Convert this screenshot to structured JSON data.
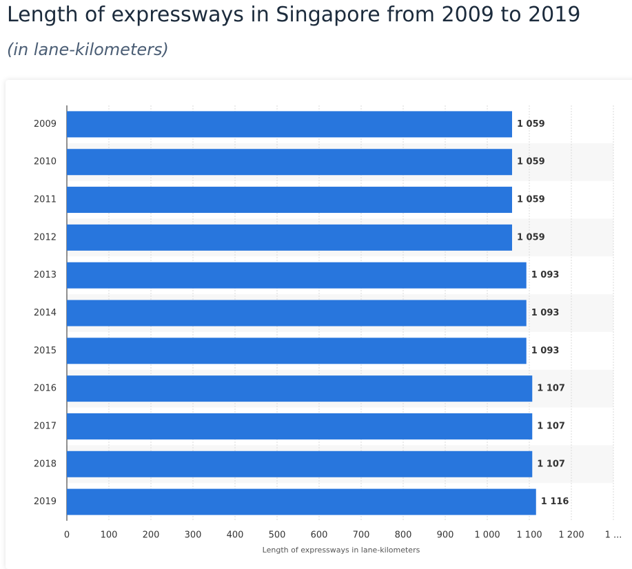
{
  "chart_data": {
    "type": "bar",
    "orientation": "horizontal",
    "title": "Length of expressways in Singapore from 2009 to 2019",
    "subtitle": "(in lane-kilometers)",
    "x_label": "Length of expressways in lane-kilometers",
    "categories": [
      "2009",
      "2010",
      "2011",
      "2012",
      "2013",
      "2014",
      "2015",
      "2016",
      "2017",
      "2018",
      "2019"
    ],
    "values": [
      1059,
      1059,
      1059,
      1059,
      1093,
      1093,
      1093,
      1107,
      1107,
      1107,
      1116
    ],
    "value_labels": [
      "1 059",
      "1 059",
      "1 059",
      "1 059",
      "1 093",
      "1 093",
      "1 093",
      "1 107",
      "1 107",
      "1 107",
      "1 116"
    ],
    "color": "#2876dd",
    "xlim": [
      0,
      1300
    ],
    "xticks": [
      0,
      100,
      200,
      300,
      400,
      500,
      600,
      700,
      800,
      900,
      {
        "value": 1000,
        "label": "1 000"
      },
      {
        "value": 1100,
        "label": "1 100"
      },
      {
        "value": 1200,
        "label": "1 200"
      },
      {
        "value": 1300,
        "label": "1 ..."
      }
    ],
    "grid": true
  }
}
